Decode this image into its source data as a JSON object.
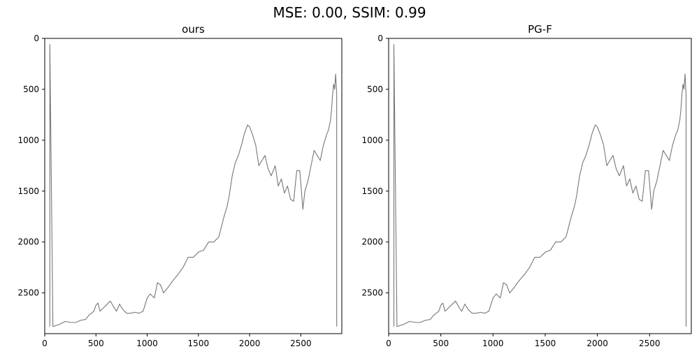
{
  "figure": {
    "title": "MSE: 0.00, SSIM: 0.99"
  },
  "chart_data": [
    {
      "type": "line",
      "title": "ours",
      "xlabel": "",
      "ylabel": "",
      "xlim": [
        0,
        2900
      ],
      "ylim": [
        2900,
        0
      ],
      "y_inverted": true,
      "xticks": [
        0,
        500,
        1000,
        1500,
        2000,
        2500
      ],
      "yticks": [
        0,
        500,
        1000,
        1500,
        2000,
        2500
      ],
      "grid": false,
      "line_color": "#777777",
      "series": [
        {
          "x": [
            50,
            50,
            80,
            140,
            200,
            260,
            300,
            350,
            400,
            430,
            480,
            500,
            520,
            540,
            560,
            600,
            640,
            680,
            700,
            730,
            760,
            800,
            840,
            880,
            920,
            960,
            1000,
            1030,
            1070,
            1100,
            1130,
            1160,
            1200,
            1250,
            1300,
            1350,
            1400,
            1450,
            1500,
            1550,
            1600,
            1650,
            1700,
            1750,
            1780,
            1800,
            1830,
            1860,
            1890,
            1920,
            1950,
            1980,
            2000,
            2030,
            2060,
            2090,
            2120,
            2150,
            2180,
            2210,
            2250,
            2280,
            2310,
            2340,
            2370,
            2400,
            2430,
            2460,
            2490,
            2520,
            2540,
            2570,
            2600,
            2630,
            2660,
            2690,
            2720,
            2750,
            2770,
            2790,
            2800,
            2810,
            2820,
            2830,
            2840,
            2850,
            2850,
            2850
          ],
          "y": [
            2830,
            60,
            2830,
            2810,
            2780,
            2790,
            2790,
            2770,
            2760,
            2720,
            2680,
            2620,
            2600,
            2680,
            2660,
            2620,
            2580,
            2650,
            2680,
            2610,
            2660,
            2700,
            2700,
            2690,
            2700,
            2680,
            2550,
            2510,
            2550,
            2400,
            2420,
            2500,
            2450,
            2380,
            2320,
            2250,
            2150,
            2150,
            2100,
            2080,
            2000,
            2000,
            1950,
            1750,
            1650,
            1550,
            1350,
            1220,
            1150,
            1050,
            930,
            850,
            870,
            950,
            1050,
            1250,
            1200,
            1150,
            1280,
            1350,
            1250,
            1450,
            1380,
            1520,
            1450,
            1580,
            1600,
            1300,
            1300,
            1680,
            1500,
            1400,
            1250,
            1100,
            1150,
            1200,
            1050,
            950,
            900,
            800,
            700,
            550,
            450,
            500,
            350,
            550,
            2830,
            2830
          ]
        }
      ]
    },
    {
      "type": "line",
      "title": "PG-F",
      "xlabel": "",
      "ylabel": "",
      "xlim": [
        0,
        2900
      ],
      "ylim": [
        2900,
        0
      ],
      "y_inverted": true,
      "xticks": [
        0,
        500,
        1000,
        1500,
        2000,
        2500
      ],
      "yticks": [
        0,
        500,
        1000,
        1500,
        2000,
        2500
      ],
      "grid": false,
      "line_color": "#777777",
      "series": [
        {
          "x": [
            50,
            50,
            80,
            140,
            200,
            260,
            300,
            350,
            400,
            430,
            480,
            500,
            520,
            540,
            560,
            600,
            640,
            680,
            700,
            730,
            760,
            800,
            840,
            880,
            920,
            960,
            1000,
            1030,
            1070,
            1100,
            1130,
            1160,
            1200,
            1250,
            1300,
            1350,
            1400,
            1450,
            1500,
            1550,
            1600,
            1650,
            1700,
            1750,
            1780,
            1800,
            1830,
            1860,
            1890,
            1920,
            1950,
            1980,
            2000,
            2030,
            2060,
            2090,
            2120,
            2150,
            2180,
            2210,
            2250,
            2280,
            2310,
            2340,
            2370,
            2400,
            2430,
            2460,
            2490,
            2520,
            2540,
            2570,
            2600,
            2630,
            2660,
            2690,
            2720,
            2750,
            2770,
            2790,
            2800,
            2810,
            2820,
            2830,
            2840,
            2850,
            2850,
            2850
          ],
          "y": [
            2830,
            60,
            2830,
            2810,
            2780,
            2790,
            2790,
            2770,
            2760,
            2720,
            2680,
            2620,
            2600,
            2680,
            2660,
            2620,
            2580,
            2650,
            2680,
            2610,
            2660,
            2700,
            2700,
            2690,
            2700,
            2680,
            2550,
            2510,
            2550,
            2400,
            2420,
            2500,
            2450,
            2380,
            2320,
            2250,
            2150,
            2150,
            2100,
            2080,
            2000,
            2000,
            1950,
            1750,
            1650,
            1550,
            1350,
            1220,
            1150,
            1050,
            930,
            850,
            870,
            950,
            1050,
            1250,
            1200,
            1150,
            1280,
            1350,
            1250,
            1450,
            1380,
            1520,
            1450,
            1580,
            1600,
            1300,
            1300,
            1680,
            1500,
            1400,
            1250,
            1100,
            1150,
            1200,
            1050,
            950,
            900,
            800,
            700,
            550,
            450,
            500,
            350,
            550,
            2830,
            2830
          ]
        }
      ]
    }
  ]
}
